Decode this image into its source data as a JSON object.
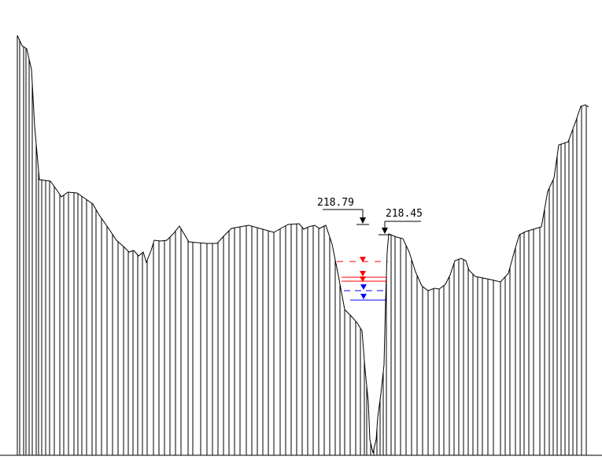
{
  "annotations": {
    "left_bank_elevation": "218.79",
    "right_bank_elevation": "218.45"
  },
  "colors": {
    "profile": "#000000",
    "flood_level": "#ff0000",
    "normal_level": "#0000ff",
    "background": "#ffffff"
  },
  "water_levels": [
    {
      "name": "flood-level-upper",
      "color": "#ff0000",
      "style": "dashed"
    },
    {
      "name": "flood-level-lower",
      "color": "#ff0000",
      "style": "solid"
    },
    {
      "name": "normal-level-upper",
      "color": "#0000ff",
      "style": "dashed"
    },
    {
      "name": "normal-level-lower",
      "color": "#0000ff",
      "style": "solid"
    }
  ]
}
